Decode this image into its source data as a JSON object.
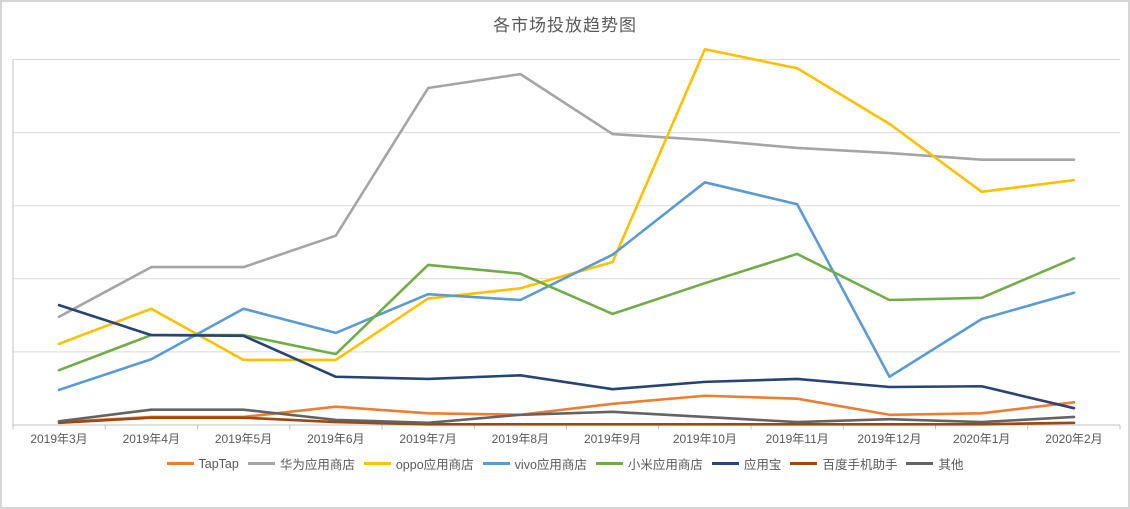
{
  "title": "各市场投放趋势图",
  "chart_data": {
    "type": "line",
    "title": "各市场投放趋势图",
    "xlabel": "",
    "ylabel": "",
    "y_axis_tick_labels_shown": false,
    "note_scale": "no y-axis labels visible; values normalized so each horizontal gridline interval = 100 units",
    "ylim": [
      0,
      500
    ],
    "gridline_values": [
      0,
      100,
      200,
      300,
      400,
      500
    ],
    "grid": true,
    "legend_position": "bottom",
    "categories": [
      "2019年3月",
      "2019年4月",
      "2019年5月",
      "2019年6月",
      "2019年7月",
      "2019年8月",
      "2019年9月",
      "2019年10月",
      "2019年11月",
      "2019年12月",
      "2020年1月",
      "2020年2月"
    ],
    "series": [
      {
        "name": "TapTap",
        "color": "#ED7D31",
        "values": [
          4,
          11,
          11,
          25,
          16,
          14,
          29,
          40,
          36,
          14,
          16,
          31
        ]
      },
      {
        "name": "华为应用商店",
        "color": "#A5A5A5",
        "values": [
          148,
          216,
          216,
          259,
          461,
          480,
          398,
          390,
          379,
          372,
          363,
          363
        ]
      },
      {
        "name": "oppo应用商店",
        "color": "#FFC000",
        "values": [
          111,
          159,
          89,
          89,
          173,
          187,
          223,
          514,
          488,
          412,
          319,
          335
        ]
      },
      {
        "name": "vivo应用商店",
        "color": "#5B9BD5",
        "values": [
          48,
          90,
          159,
          126,
          179,
          171,
          233,
          332,
          302,
          66,
          145,
          181
        ]
      },
      {
        "name": "小米应用商店",
        "color": "#70AD47",
        "values": [
          75,
          123,
          123,
          97,
          219,
          207,
          152,
          194,
          234,
          171,
          174,
          228
        ]
      },
      {
        "name": "应用宝",
        "color": "#264478",
        "values": [
          164,
          123,
          122,
          66,
          63,
          68,
          49,
          59,
          63,
          52,
          53,
          23
        ]
      },
      {
        "name": "百度手机助手",
        "color": "#9E480E",
        "values": [
          3,
          10,
          10,
          4,
          1,
          1,
          1,
          1,
          1,
          1,
          1,
          3
        ]
      },
      {
        "name": "其他",
        "color": "#636363",
        "values": [
          5,
          21,
          21,
          7,
          3,
          14,
          18,
          11,
          4,
          8,
          4,
          11
        ]
      }
    ],
    "colors": {
      "gridline": "#D9D9D9",
      "axis": "#C0C0C0",
      "title_text": "#595959",
      "label_text": "#595959"
    }
  }
}
